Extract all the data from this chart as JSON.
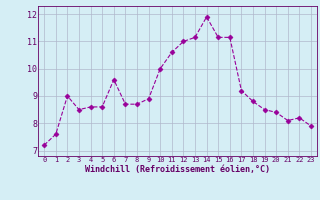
{
  "x": [
    0,
    1,
    2,
    3,
    4,
    5,
    6,
    7,
    8,
    9,
    10,
    11,
    12,
    13,
    14,
    15,
    16,
    17,
    18,
    19,
    20,
    21,
    22,
    23
  ],
  "y": [
    7.2,
    7.6,
    9.0,
    8.5,
    8.6,
    8.6,
    9.6,
    8.7,
    8.7,
    8.9,
    10.0,
    10.6,
    11.0,
    11.15,
    11.9,
    11.15,
    11.15,
    9.2,
    8.8,
    8.5,
    8.4,
    8.1,
    8.2,
    7.9
  ],
  "line_color": "#990099",
  "marker": "D",
  "marker_size": 2.5,
  "bg_color": "#d5eef5",
  "grid_color": "#b0b8cc",
  "xlabel": "Windchill (Refroidissement éolien,°C)",
  "xlim": [
    -0.5,
    23.5
  ],
  "ylim": [
    6.8,
    12.3
  ],
  "yticks": [
    7,
    8,
    9,
    10,
    11,
    12
  ],
  "xticks": [
    0,
    1,
    2,
    3,
    4,
    5,
    6,
    7,
    8,
    9,
    10,
    11,
    12,
    13,
    14,
    15,
    16,
    17,
    18,
    19,
    20,
    21,
    22,
    23
  ],
  "font_color": "#660066"
}
